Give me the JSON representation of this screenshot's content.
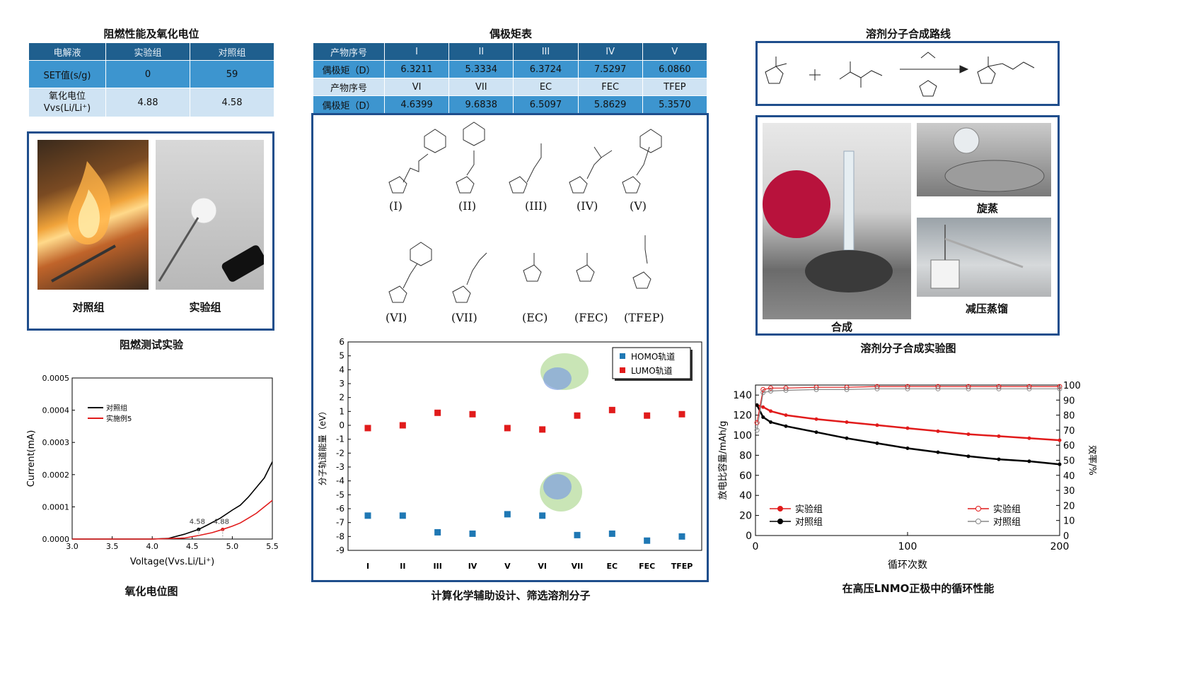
{
  "panel_left": {
    "table_title": "阻燃性能及氧化电位",
    "table_headers": [
      "电解液",
      "实验组",
      "对照组"
    ],
    "rows": [
      {
        "label": "SET值(s/g)",
        "exp": "0",
        "ctrl": "59"
      },
      {
        "label": "氧化电位",
        "label2": "Vvs(Li/Li⁺)",
        "exp": "4.88",
        "ctrl": "4.58"
      }
    ],
    "photo_labels": {
      "control": "对照组",
      "experiment": "实验组"
    },
    "photo_caption": "阻燃测试实验",
    "chart_caption": "氧化电位图"
  },
  "panel_middle": {
    "table_title": "偶极矩表",
    "row1_header": "产物序号",
    "row1": [
      "I",
      "II",
      "III",
      "IV",
      "V"
    ],
    "row2_header": "偶极矩（D）",
    "row2": [
      "6.3211",
      "5.3334",
      "6.3724",
      "7.5297",
      "6.0860"
    ],
    "row3_header": "产物序号",
    "row3": [
      "VI",
      "VII",
      "EC",
      "FEC",
      "TFEP"
    ],
    "row4_header": "偶极矩（D）",
    "row4": [
      "4.6399",
      "9.6838",
      "6.5097",
      "5.8629",
      "5.3570"
    ],
    "molecule_labels_row1": [
      "(I)",
      "(II)",
      "(III)",
      "(IV)",
      "(V)"
    ],
    "molecule_labels_row2": [
      "(VI)",
      "(VII)",
      "(EC)",
      "(FEC)",
      "(TFEP)"
    ],
    "caption": "计算化学辅助设计、筛选溶剂分子"
  },
  "panel_right": {
    "route_title": "溶剂分子合成路线",
    "photo_labels": {
      "synthesis": "合成",
      "rotary": "旋蒸",
      "vacuum": "减压蒸馏"
    },
    "photo_caption": "溶剂分子合成实验图",
    "chart_caption": "在高压LNMO正极中的循环性能"
  },
  "colors": {
    "table_dark": "#1f5f8e",
    "table_mid": "#3d95cf",
    "table_light": "#cfe3f3",
    "frame": "#1f4e8c",
    "red": "#e11b1b",
    "blue": "#1f78b4",
    "black": "#000000"
  },
  "chart_data": [
    {
      "type": "line",
      "xlabel": "Voltage(Vvs.Li/Li⁺)",
      "ylabel": "Current(mA)",
      "xlim": [
        3.0,
        5.5
      ],
      "ylim": [
        0.0,
        0.0005
      ],
      "xticks": [
        "3.0",
        "3.5",
        "4.0",
        "4.5",
        "5.0",
        "5.5"
      ],
      "yticks": [
        "0.0000",
        "0.0001",
        "0.0002",
        "0.0003",
        "0.0004",
        "0.0005"
      ],
      "legend": "top-left",
      "annotations": [
        {
          "x": 4.58,
          "text": "4.58"
        },
        {
          "x": 4.88,
          "text": "4.88"
        }
      ],
      "series": [
        {
          "name": "对照组",
          "color": "#000000",
          "x": [
            3.0,
            3.5,
            4.0,
            4.2,
            4.4,
            4.58,
            4.7,
            4.85,
            5.0,
            5.1,
            5.2,
            5.3,
            5.4,
            5.5
          ],
          "y": [
            0.0,
            0.0,
            0.0,
            2e-06,
            1.5e-05,
            3e-05,
            4.5e-05,
            6.5e-05,
            9e-05,
            0.000105,
            0.00013,
            0.00016,
            0.00019,
            0.00024
          ]
        },
        {
          "name": "实施例5",
          "color": "#e11b1b",
          "x": [
            3.0,
            3.5,
            4.0,
            4.4,
            4.6,
            4.75,
            4.88,
            5.0,
            5.1,
            5.2,
            5.3,
            5.4,
            5.5
          ],
          "y": [
            0.0,
            0.0,
            0.0,
            3e-06,
            1.2e-05,
            2e-05,
            3e-05,
            4e-05,
            5e-05,
            6.5e-05,
            8e-05,
            0.0001,
            0.00012
          ]
        }
      ]
    },
    {
      "type": "scatter",
      "ylabel": "分子轨道能量（eV）",
      "categories": [
        "I",
        "II",
        "III",
        "IV",
        "V",
        "VI",
        "VII",
        "EC",
        "FEC",
        "TFEP"
      ],
      "ylim": [
        -9,
        6
      ],
      "yticks": [
        "6",
        "5",
        "4",
        "3",
        "2",
        "1",
        "0",
        "-1",
        "-2",
        "-3",
        "-4",
        "-5",
        "-6",
        "-7",
        "-8",
        "-9"
      ],
      "legend": "top-right",
      "series": [
        {
          "name": "HOMO轨道",
          "color": "#1f78b4",
          "values": [
            -6.5,
            -6.5,
            -7.7,
            -7.8,
            -6.4,
            -6.5,
            -7.9,
            -7.8,
            -8.3,
            -8.0
          ]
        },
        {
          "name": "LUMO轨道",
          "color": "#e11b1b",
          "values": [
            -0.2,
            0.0,
            0.9,
            0.8,
            -0.2,
            -0.3,
            0.7,
            1.1,
            0.7,
            0.8
          ]
        }
      ]
    },
    {
      "type": "scatter",
      "xlabel": "循环次数",
      "ylabel": "放电比容量/mAh/g",
      "ylabel2": "效率/%",
      "xlim": [
        0,
        200
      ],
      "ylim": [
        0,
        150
      ],
      "ylim2": [
        0,
        100
      ],
      "xticks": [
        "0",
        "100",
        "200"
      ],
      "yticks": [
        "0",
        "20",
        "40",
        "60",
        "80",
        "100",
        "120",
        "140"
      ],
      "yticks2": [
        "0",
        "10",
        "20",
        "30",
        "40",
        "50",
        "60",
        "70",
        "80",
        "90",
        "100"
      ],
      "legend": "bottom",
      "series": [
        {
          "name": "实验组",
          "axis": "left",
          "color": "#e11b1b",
          "x": [
            1,
            5,
            10,
            20,
            40,
            60,
            80,
            100,
            120,
            140,
            160,
            180,
            200
          ],
          "y": [
            130,
            128,
            124,
            120,
            116,
            113,
            110,
            107,
            104,
            101,
            99,
            97,
            95
          ]
        },
        {
          "name": "对照组",
          "axis": "left",
          "color": "#000000",
          "x": [
            1,
            5,
            10,
            20,
            40,
            60,
            80,
            100,
            120,
            140,
            160,
            180,
            200
          ],
          "y": [
            130,
            118,
            113,
            109,
            103,
            97,
            92,
            87,
            83,
            79,
            76,
            74,
            71
          ]
        },
        {
          "name": "实验组",
          "axis": "right",
          "color": "#e11b1b",
          "x": [
            1,
            5,
            10,
            20,
            40,
            60,
            80,
            100,
            120,
            140,
            160,
            180,
            200
          ],
          "y": [
            75,
            97,
            98,
            98,
            98.5,
            98.5,
            99,
            99,
            99,
            99,
            99,
            99,
            99
          ]
        },
        {
          "name": "对照组",
          "axis": "right",
          "color": "#888888",
          "x": [
            1,
            5,
            10,
            20,
            40,
            60,
            80,
            100,
            120,
            140,
            160,
            180,
            200
          ],
          "y": [
            70,
            95,
            96,
            96.5,
            97,
            97,
            97.5,
            97.5,
            97.5,
            97.5,
            97.5,
            97.5,
            97.5
          ]
        }
      ]
    }
  ]
}
